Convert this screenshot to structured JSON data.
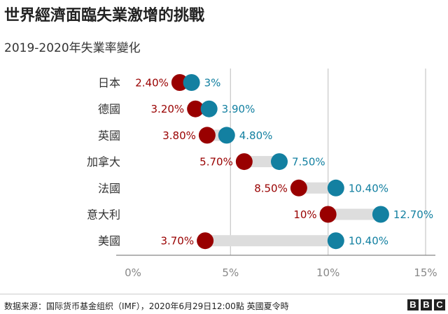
{
  "title": "世界經濟面臨失業激增的挑戰",
  "subtitle": "2019-2020年失業率變化",
  "source": "数据来源：国际货币基金组织（IMF），2020年6月29日12:00點 英國夏令時",
  "logo": [
    "B",
    "B",
    "C"
  ],
  "colors": {
    "y2019": "#990000",
    "y2020": "#1380a1",
    "connector": "#dddddd",
    "grid": "#cccccc",
    "axis": "#888888"
  },
  "chart_data": {
    "type": "dumbbell",
    "title": "世界經濟面臨失業激增的挑戰",
    "subtitle": "2019-2020年失業率變化",
    "categories": [
      "日本",
      "德國",
      "英國",
      "加拿大",
      "法國",
      "意大利",
      "美國"
    ],
    "series": [
      {
        "values": [
          2.4,
          3.2,
          3.8,
          5.7,
          8.5,
          10.0,
          3.7
        ],
        "labels": [
          "2.40%",
          "3.20%",
          "3.80%",
          "5.70%",
          "8.50%",
          "10%",
          "3.70%"
        ]
      },
      {
        "values": [
          3.0,
          3.9,
          4.8,
          7.5,
          10.4,
          12.7,
          10.4
        ],
        "labels": [
          "3%",
          "3.90%",
          "4.80%",
          "7.50%",
          "10.40%",
          "12.70%",
          "10.40%"
        ]
      }
    ],
    "xlim": [
      0,
      15
    ],
    "xticks": [
      0,
      5,
      10,
      15
    ],
    "xtick_labels": [
      "0%",
      "5%",
      "10%",
      "15%"
    ],
    "grid": true
  }
}
